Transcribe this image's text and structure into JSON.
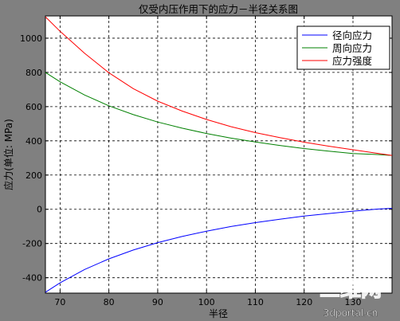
{
  "chart_data": {
    "type": "line",
    "title": "仅受内压作用下的应力－半径关系图",
    "xlabel": "半径",
    "ylabel": "应力(单位:  MPa)",
    "xlim": [
      67,
      138
    ],
    "ylim": [
      -490,
      1130
    ],
    "xticks": [
      70,
      80,
      90,
      100,
      110,
      120,
      130
    ],
    "yticks": [
      -400,
      -200,
      0,
      200,
      400,
      600,
      800,
      1000
    ],
    "grid": true,
    "legend_position": "top-right",
    "series": [
      {
        "name": "径向应力",
        "color": "#0000ff",
        "x": [
          67,
          70,
          75,
          80,
          85,
          90,
          95,
          100,
          105,
          110,
          115,
          120,
          125,
          130,
          135,
          138
        ],
        "values": [
          -485,
          -430,
          -352,
          -290,
          -238,
          -195,
          -159,
          -128,
          -101,
          -78,
          -58,
          -40,
          -25,
          -11,
          1,
          6
        ]
      },
      {
        "name": "周向应力",
        "color": "#008000",
        "x": [
          67,
          70,
          75,
          80,
          85,
          90,
          95,
          100,
          105,
          110,
          115,
          120,
          125,
          130,
          135,
          138
        ],
        "values": [
          800,
          745,
          668,
          605,
          553,
          510,
          474,
          443,
          416,
          393,
          373,
          355,
          340,
          326,
          320,
          315
        ]
      },
      {
        "name": "应力强度",
        "color": "#ff0000",
        "x": [
          67,
          70,
          75,
          80,
          85,
          90,
          95,
          100,
          105,
          110,
          115,
          120,
          125,
          130,
          135,
          138
        ],
        "values": [
          1125,
          1040,
          912,
          798,
          705,
          632,
          574,
          525,
          483,
          448,
          419,
          392,
          369,
          348,
          327,
          315
        ]
      }
    ]
  },
  "watermark": {
    "logo": "三维网",
    "url": "3dportal.cn"
  }
}
